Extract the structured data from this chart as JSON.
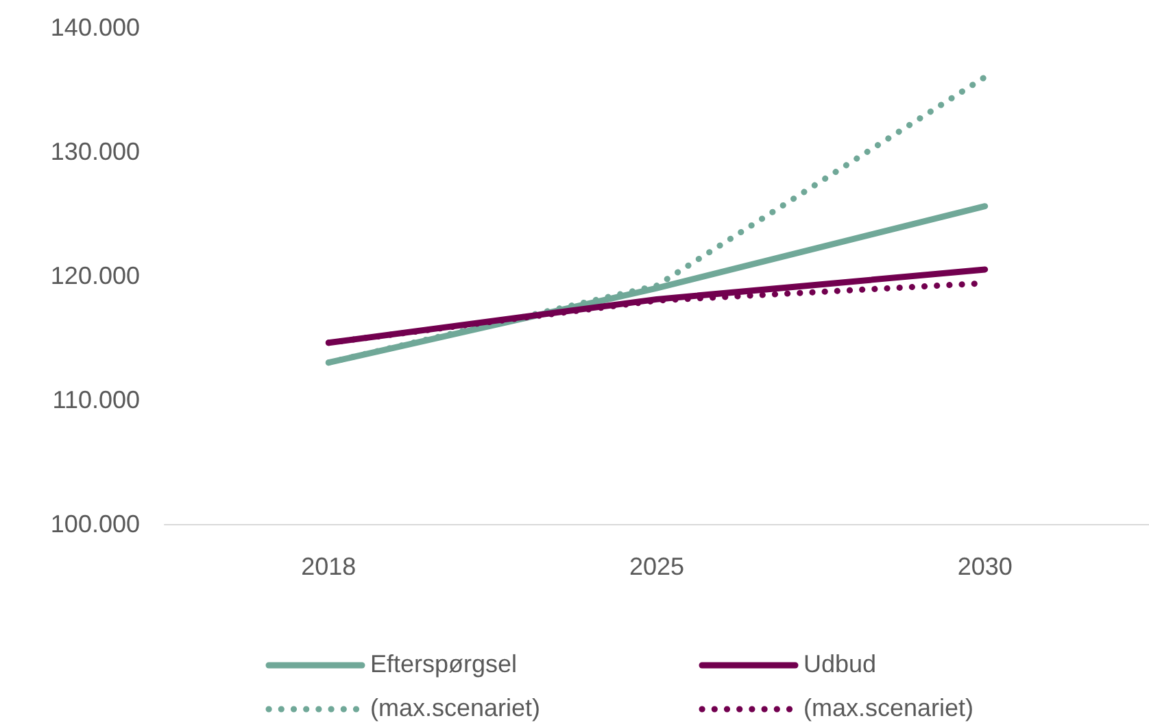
{
  "chart_data": {
    "type": "line",
    "categories": [
      "2018",
      "2025",
      "2030"
    ],
    "series": [
      {
        "name": "Efterspørgsel",
        "color": "#70a898",
        "line_style": "solid",
        "values": [
          113000,
          119000,
          125600
        ]
      },
      {
        "name": "(max.scenariet)",
        "color": "#70a898",
        "line_style": "dotted",
        "values": [
          113000,
          119200,
          136000
        ]
      },
      {
        "name": "Udbud",
        "color": "#72004f",
        "line_style": "solid",
        "values": [
          114600,
          118100,
          120500
        ]
      },
      {
        "name": "(max.scenariet)",
        "color": "#72004f",
        "line_style": "dotted",
        "values": [
          114600,
          118000,
          119400
        ]
      }
    ],
    "ylim": [
      100000,
      140000
    ],
    "yticks": [
      {
        "value": 100000,
        "label": "100.000"
      },
      {
        "value": 110000,
        "label": "110.000"
      },
      {
        "value": 120000,
        "label": "120.000"
      },
      {
        "value": 130000,
        "label": "130.000"
      },
      {
        "value": 140000,
        "label": "140.000"
      }
    ],
    "grid": false,
    "legend": "bottom",
    "marker": "none"
  }
}
